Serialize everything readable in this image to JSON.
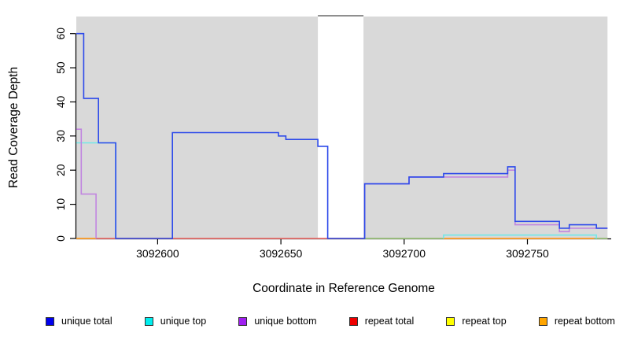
{
  "chart_data": {
    "type": "line",
    "title": "",
    "xlabel": "Coordinate in Reference Genome",
    "ylabel": "Read Coverage Depth",
    "xlim": [
      3092567,
      3092784
    ],
    "ylim": [
      0,
      65
    ],
    "xticks": [
      3092600,
      3092650,
      3092700,
      3092750
    ],
    "yticks": [
      0,
      10,
      20,
      30,
      40,
      50,
      60
    ],
    "grid": false,
    "shaded_regions": [
      {
        "name": "covered-region-left",
        "range": [
          3092567,
          3092665
        ],
        "color": "#d9d9d9"
      },
      {
        "name": "covered-region-right",
        "range": [
          3092683.5,
          3092782.5
        ],
        "color": "#d9d9d9"
      }
    ],
    "gap_top_line": {
      "range": [
        3092665,
        3092683.5
      ],
      "color": "#8f8f8f"
    },
    "series": [
      {
        "name": "repeat top",
        "line_color": "#f5e626",
        "segments": [
          [
            [
              3092567,
              0
            ],
            [
              3092782.5,
              0
            ]
          ]
        ]
      },
      {
        "name": "repeat total",
        "line_color": "#e8607c",
        "segments": [
          [
            [
              3092567,
              0
            ],
            [
              3092782.5,
              0
            ]
          ]
        ]
      },
      {
        "name": "repeat bottom",
        "line_color": "#ffa526",
        "segments": [
          [
            [
              3092567,
              0
            ],
            [
              3092575,
              0
            ]
          ],
          [
            [
              3092716,
              0
            ],
            [
              3092777,
              0
            ]
          ]
        ]
      },
      {
        "name": "overlap baseline",
        "line_color": "#85cc85",
        "segments": [
          [
            [
              3092683.5,
              0
            ],
            [
              3092716,
              0
            ]
          ],
          [
            [
              3092777,
              0
            ],
            [
              3092782.5,
              0
            ]
          ]
        ]
      },
      {
        "name": "unique top",
        "line_color": "#72e8e8",
        "segments": [
          [
            [
              3092567,
              28
            ],
            [
              3092583,
              28
            ],
            [
              3092583,
              0
            ]
          ],
          [
            [
              3092716,
              0
            ],
            [
              3092716,
              1
            ],
            [
              3092778,
              1
            ],
            [
              3092778,
              0
            ]
          ]
        ]
      },
      {
        "name": "unique bottom",
        "line_color": "#c185e0",
        "segments": [
          [
            [
              3092567,
              32
            ],
            [
              3092569,
              32
            ],
            [
              3092569,
              13
            ],
            [
              3092575,
              13
            ],
            [
              3092575,
              0
            ]
          ],
          [
            [
              3092684,
              0
            ],
            [
              3092684,
              16
            ],
            [
              3092702,
              16
            ],
            [
              3092702,
              18
            ],
            [
              3092742,
              18
            ],
            [
              3092742,
              20
            ],
            [
              3092745,
              20
            ],
            [
              3092745,
              4
            ],
            [
              3092763,
              4
            ],
            [
              3092763,
              2
            ],
            [
              3092767,
              2
            ],
            [
              3092767,
              3
            ],
            [
              3092782.5,
              3
            ]
          ]
        ]
      },
      {
        "name": "unique total",
        "line_color": "#2c49ea",
        "segments": [
          [
            [
              3092567,
              60
            ],
            [
              3092570,
              60
            ],
            [
              3092570,
              41
            ],
            [
              3092576,
              41
            ],
            [
              3092576,
              28
            ],
            [
              3092583,
              28
            ],
            [
              3092583,
              0
            ],
            [
              3092606,
              0
            ],
            [
              3092606,
              31
            ],
            [
              3092649,
              31
            ],
            [
              3092649,
              30
            ],
            [
              3092652,
              30
            ],
            [
              3092652,
              29
            ],
            [
              3092665,
              29
            ],
            [
              3092665,
              27
            ],
            [
              3092669,
              27
            ],
            [
              3092669,
              0
            ],
            [
              3092684,
              0
            ],
            [
              3092684,
              16
            ],
            [
              3092702,
              16
            ],
            [
              3092702,
              18
            ],
            [
              3092716,
              18
            ],
            [
              3092716,
              19
            ],
            [
              3092742,
              19
            ],
            [
              3092742,
              21
            ],
            [
              3092745,
              21
            ],
            [
              3092745,
              5
            ],
            [
              3092763,
              5
            ],
            [
              3092763,
              3
            ],
            [
              3092767,
              3
            ],
            [
              3092767,
              4
            ],
            [
              3092778,
              4
            ],
            [
              3092778,
              3
            ],
            [
              3092782.5,
              3
            ]
          ]
        ]
      }
    ]
  },
  "legend": {
    "items": [
      {
        "label": "unique total",
        "color": "#0000ee"
      },
      {
        "label": "unique top",
        "color": "#00eeee"
      },
      {
        "label": "unique bottom",
        "color": "#a020f0"
      },
      {
        "label": "repeat total",
        "color": "#ee0000"
      },
      {
        "label": "repeat top",
        "color": "#ffff00"
      },
      {
        "label": "repeat bottom",
        "color": "#ffa500"
      }
    ]
  }
}
